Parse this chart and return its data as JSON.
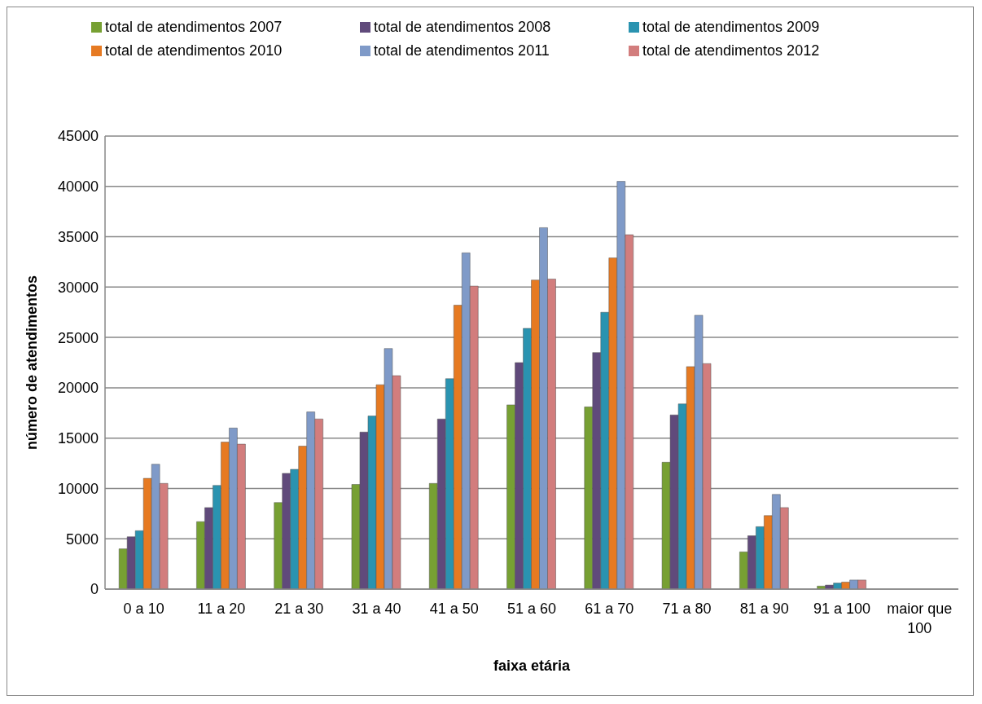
{
  "chart_data": {
    "type": "bar",
    "xlabel": "faixa etária",
    "ylabel": "número de atendimentos",
    "categories": [
      "0 a 10",
      "11 a 20",
      "21 a 30",
      "31 a 40",
      "41 a 50",
      "51 a 60",
      "61 a 70",
      "71 a 80",
      "81 a 90",
      "91 a 100",
      "maior que 100"
    ],
    "series": [
      {
        "name": "total de atendimentos 2007",
        "color": "#77a033",
        "values": [
          4000,
          6700,
          8600,
          10400,
          10500,
          18300,
          18100,
          12600,
          3700,
          300,
          0
        ]
      },
      {
        "name": "total de atendimentos 2008",
        "color": "#604a7b",
        "values": [
          5200,
          8100,
          11500,
          15600,
          16900,
          22500,
          23500,
          17300,
          5300,
          400,
          0
        ]
      },
      {
        "name": "total de atendimentos 2009",
        "color": "#2a93b0",
        "values": [
          5800,
          10300,
          11900,
          17200,
          20900,
          25900,
          27500,
          18400,
          6200,
          600,
          0
        ]
      },
      {
        "name": "total de atendimentos 2010",
        "color": "#e67a22",
        "values": [
          11000,
          14600,
          14200,
          20300,
          28200,
          30700,
          32900,
          22100,
          7300,
          700,
          0
        ]
      },
      {
        "name": "total de atendimentos 2011",
        "color": "#7f9ac8",
        "values": [
          12400,
          16000,
          17600,
          23900,
          33400,
          35900,
          40500,
          27200,
          9400,
          900,
          0
        ]
      },
      {
        "name": "total de atendimentos 2012",
        "color": "#d27d7d",
        "values": [
          10500,
          14400,
          16900,
          21200,
          30100,
          30800,
          35200,
          22400,
          8100,
          900,
          0
        ]
      }
    ],
    "ylim": [
      0,
      45000
    ],
    "yticks": [
      0,
      5000,
      10000,
      15000,
      20000,
      25000,
      30000,
      35000,
      40000,
      45000
    ],
    "grid": "y",
    "legend": "top"
  }
}
